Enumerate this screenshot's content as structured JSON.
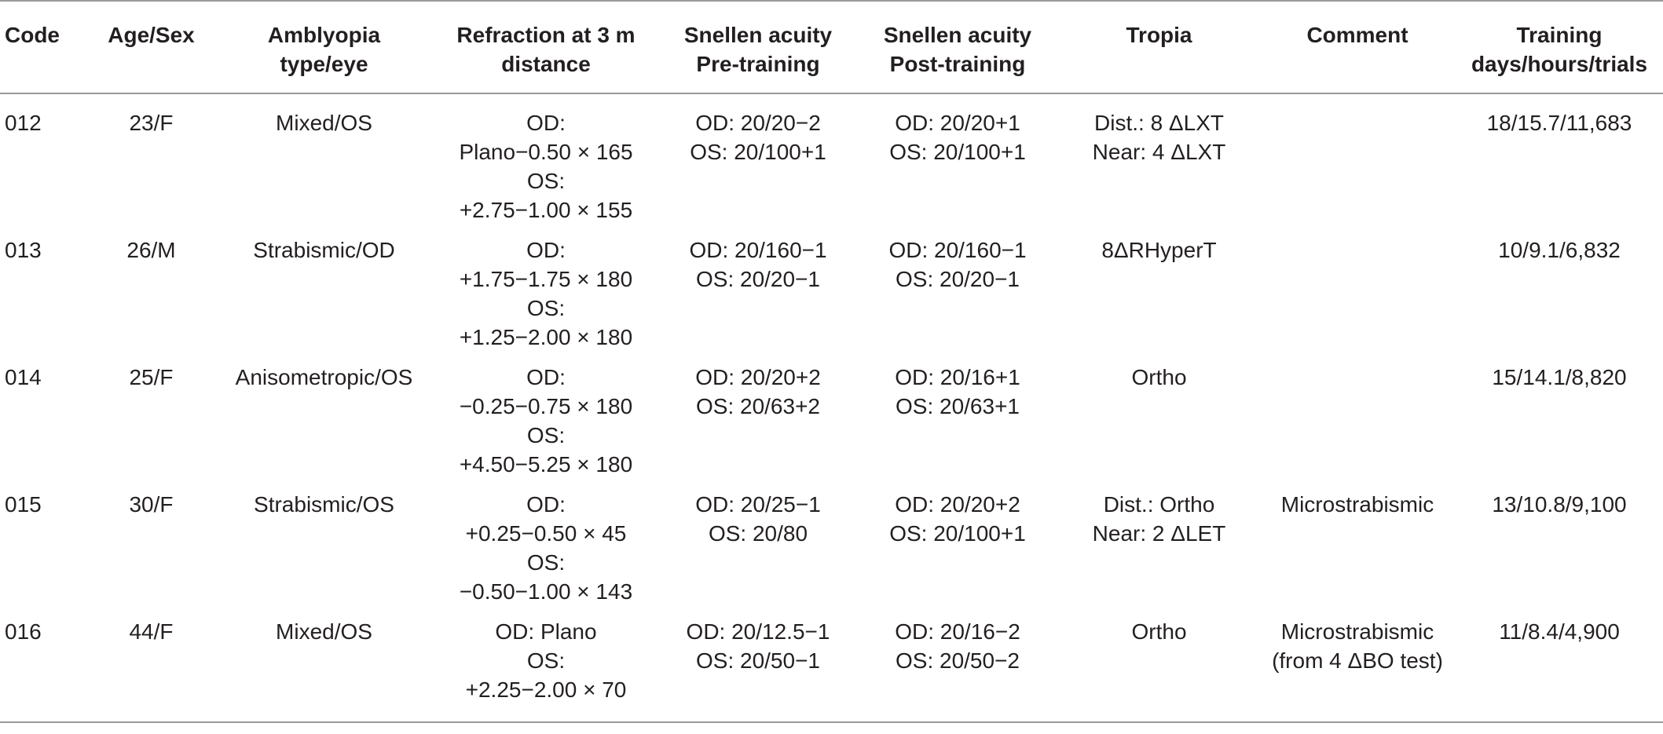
{
  "table": {
    "columns": [
      [
        "Code"
      ],
      [
        "Age/Sex"
      ],
      [
        "Amblyopia",
        "type/eye"
      ],
      [
        "Refraction at 3 m",
        "distance"
      ],
      [
        "Snellen acuity",
        "Pre-training"
      ],
      [
        "Snellen acuity",
        "Post-training"
      ],
      [
        "Tropia"
      ],
      [
        "Comment"
      ],
      [
        "Training",
        "days/hours/trials"
      ]
    ],
    "rows": [
      {
        "code": "012",
        "age_sex": "23/F",
        "amblyopia": "Mixed/OS",
        "refraction": [
          "OD:",
          "Plano−0.50 × 165",
          "OS:",
          "+2.75−1.00 × 155"
        ],
        "pre": [
          "OD: 20/20−2",
          "OS: 20/100+1"
        ],
        "post": [
          "OD: 20/20+1",
          "OS: 20/100+1"
        ],
        "tropia": [
          "Dist.: 8 ΔLXT",
          "Near: 4 ΔLXT"
        ],
        "comment": [],
        "training": "18/15.7/11,683"
      },
      {
        "code": "013",
        "age_sex": "26/M",
        "amblyopia": "Strabismic/OD",
        "refraction": [
          "OD:",
          "+1.75−1.75 × 180",
          "OS:",
          "+1.25−2.00 × 180"
        ],
        "pre": [
          "OD: 20/160−1",
          "OS: 20/20−1"
        ],
        "post": [
          "OD: 20/160−1",
          "OS: 20/20−1"
        ],
        "tropia": [
          "8ΔRHyperT"
        ],
        "comment": [],
        "training": "10/9.1/6,832"
      },
      {
        "code": "014",
        "age_sex": "25/F",
        "amblyopia": "Anisometropic/OS",
        "refraction": [
          "OD:",
          "−0.25−0.75 × 180",
          "OS:",
          "+4.50−5.25 × 180"
        ],
        "pre": [
          "OD: 20/20+2",
          "OS: 20/63+2"
        ],
        "post": [
          "OD: 20/16+1",
          "OS: 20/63+1"
        ],
        "tropia": [
          "Ortho"
        ],
        "comment": [],
        "training": "15/14.1/8,820"
      },
      {
        "code": "015",
        "age_sex": "30/F",
        "amblyopia": "Strabismic/OS",
        "refraction": [
          "OD:",
          "+0.25−0.50 × 45",
          "OS:",
          "−0.50−1.00 × 143"
        ],
        "pre": [
          "OD: 20/25−1",
          "OS: 20/80"
        ],
        "post": [
          "OD: 20/20+2",
          "OS: 20/100+1"
        ],
        "tropia": [
          "Dist.: Ortho",
          "Near: 2 ΔLET"
        ],
        "comment": [
          "Microstrabismic"
        ],
        "training": "13/10.8/9,100"
      },
      {
        "code": "016",
        "age_sex": "44/F",
        "amblyopia": "Mixed/OS",
        "refraction": [
          "OD: Plano",
          "OS:",
          "+2.25−2.00 × 70"
        ],
        "pre": [
          "OD: 20/12.5−1",
          "OS: 20/50−1"
        ],
        "post": [
          "OD: 20/16−2",
          "OS: 20/50−2"
        ],
        "tropia": [
          "Ortho"
        ],
        "comment": [
          "Microstrabismic",
          "(from 4 ΔBO test)"
        ],
        "training": "11/8.4/4,900"
      }
    ]
  }
}
